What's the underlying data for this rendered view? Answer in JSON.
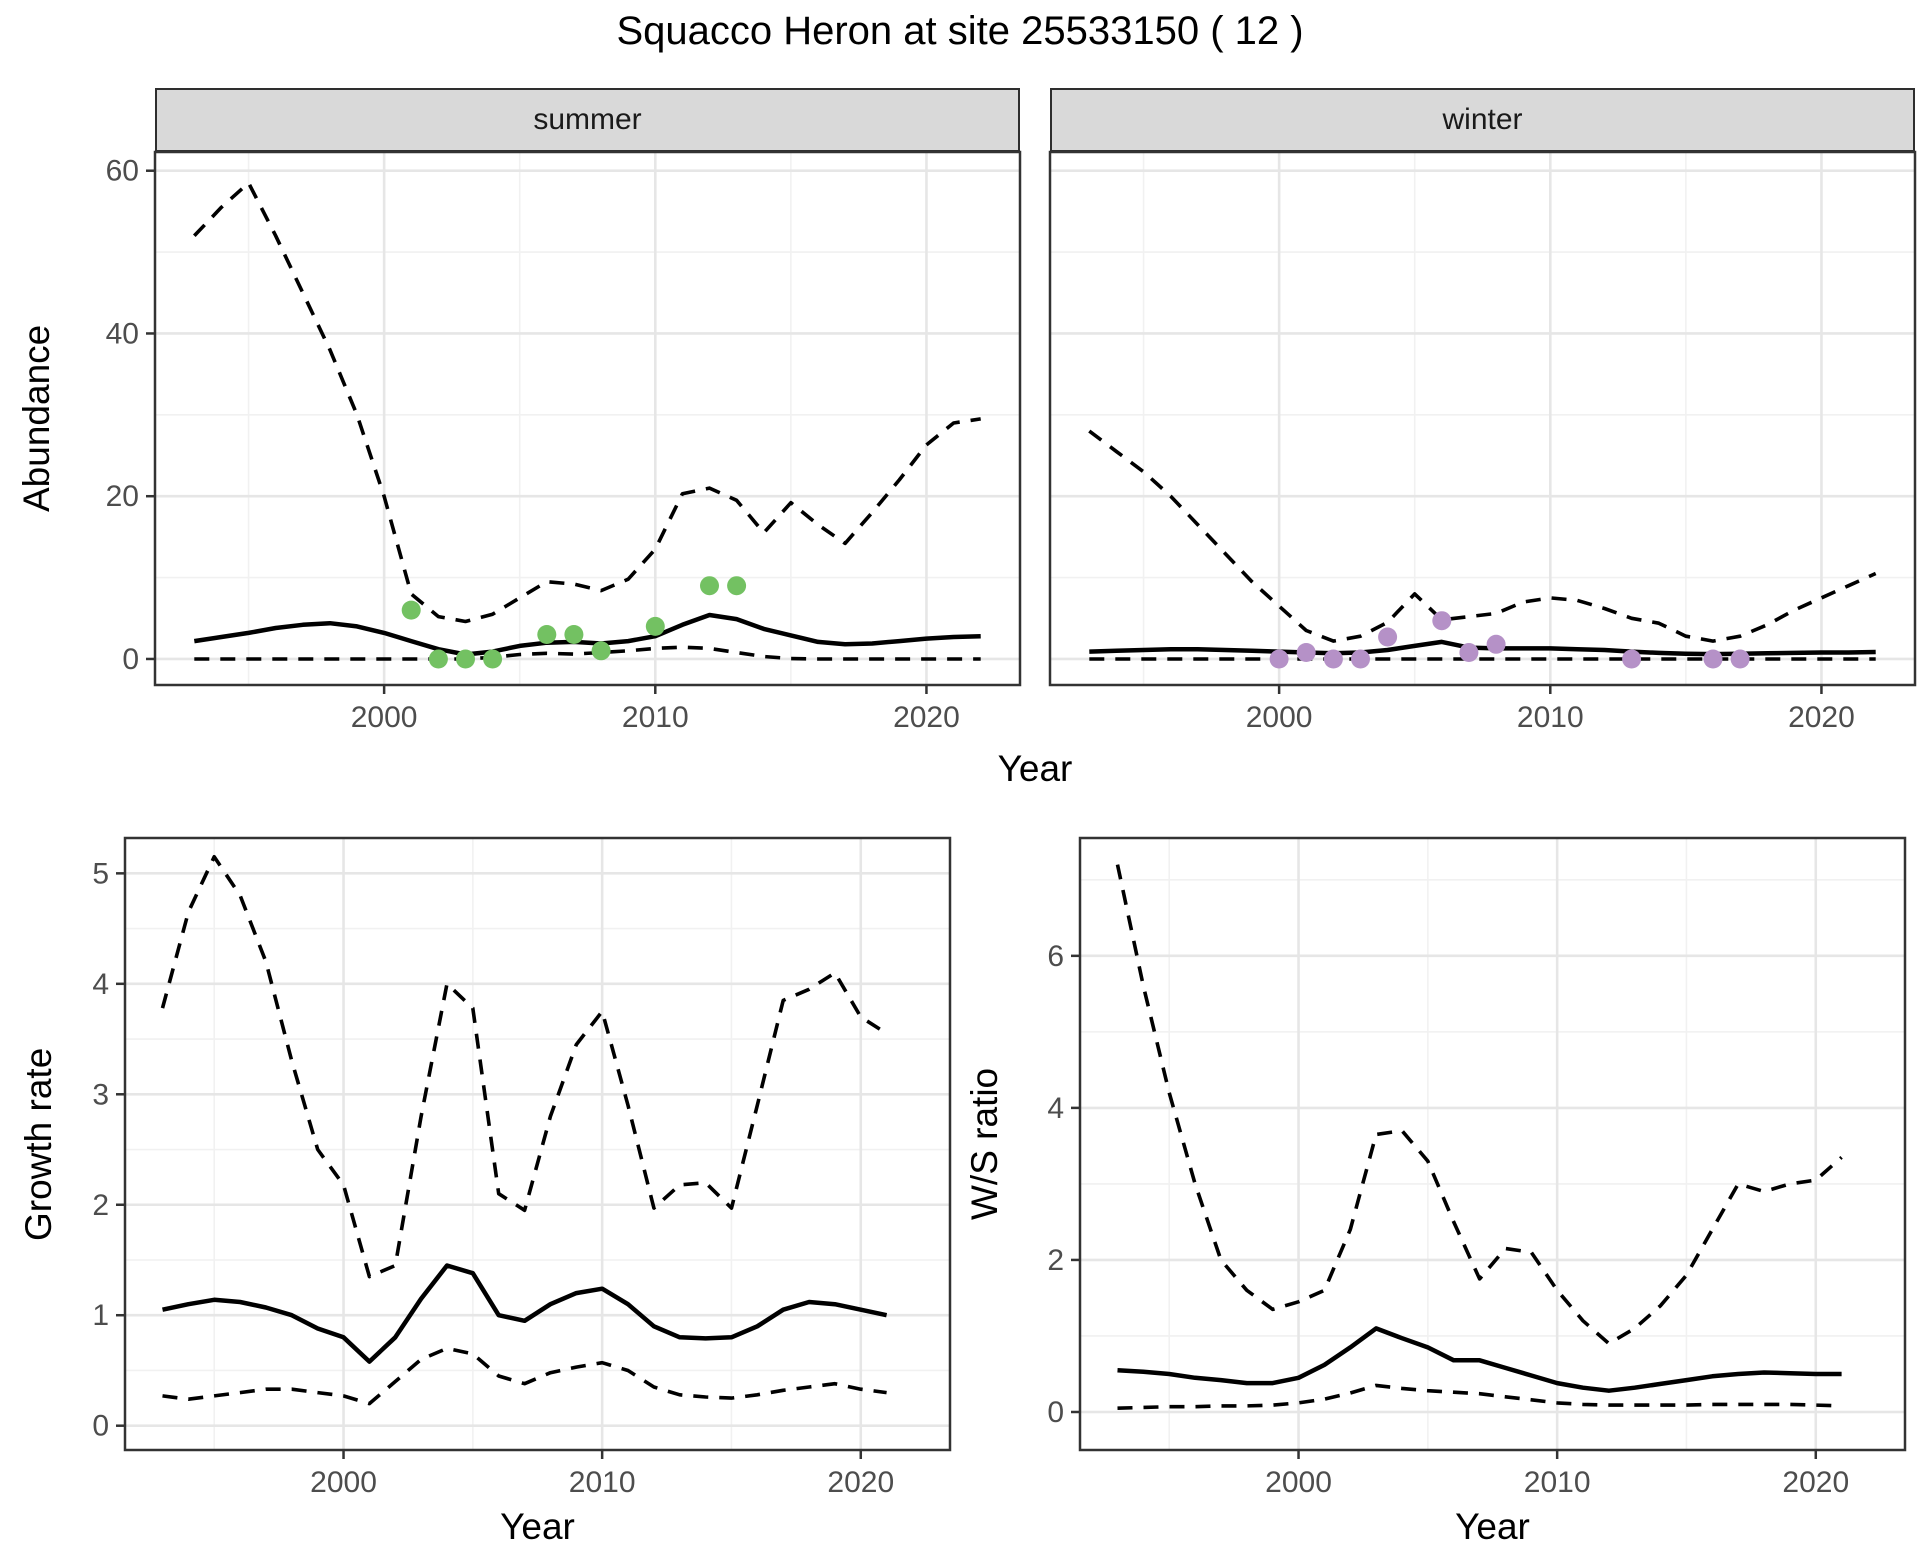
{
  "title": "Squacco Heron at site 25533150 ( 12 )",
  "top_row": {
    "ylabel": "Abundance",
    "xlabel": "Year"
  },
  "colors": {
    "summer_point": "#73c162",
    "winter_point": "#b591c7",
    "line": "#000000",
    "grid_major": "#e6e6e6",
    "grid_minor": "#f1f1f1",
    "axis_text": "#4d4d4d",
    "panel_border": "#333333",
    "strip_bg": "#d9d9d9"
  },
  "chart_data": [
    {
      "id": "abundance_summer",
      "type": "line",
      "facet_label": "summer",
      "ylabel": "Abundance",
      "xlabel": "Year",
      "xlim": [
        1991.55,
        2023.45
      ],
      "ylim": [
        -3.2,
        62.3
      ],
      "xticks": [
        2000,
        2010,
        2020
      ],
      "yticks": [
        0,
        20,
        40,
        60
      ],
      "xminor": [
        1995,
        2005,
        2015
      ],
      "yminor": [
        10,
        30,
        50
      ],
      "x": [
        1993,
        1994,
        1995,
        1996,
        1997,
        1998,
        1999,
        2000,
        2001,
        2002,
        2003,
        2004,
        2005,
        2006,
        2007,
        2008,
        2009,
        2010,
        2011,
        2012,
        2013,
        2014,
        2015,
        2016,
        2017,
        2018,
        2019,
        2020,
        2021,
        2022
      ],
      "series": [
        {
          "name": "upper_95ci",
          "style": "dashed",
          "values": [
            52,
            55.5,
            58.5,
            52,
            45,
            38,
            30,
            20,
            8,
            5.2,
            4.6,
            5.5,
            7.5,
            9.5,
            9.2,
            8.4,
            9.8,
            13.5,
            20.3,
            21,
            19.5,
            15.5,
            19.2,
            16.5,
            14.2,
            18,
            22,
            26.3,
            29,
            29.5
          ]
        },
        {
          "name": "median",
          "style": "solid",
          "values": [
            2.2,
            2.7,
            3.2,
            3.8,
            4.2,
            4.4,
            4.0,
            3.2,
            2.2,
            1.2,
            0.55,
            0.9,
            1.6,
            2.0,
            2.1,
            1.9,
            2.2,
            2.8,
            4.2,
            5.4,
            4.9,
            3.7,
            2.9,
            2.1,
            1.8,
            1.9,
            2.2,
            2.5,
            2.7,
            2.8
          ]
        },
        {
          "name": "lower_95ci",
          "style": "dashed",
          "values": [
            0,
            0,
            0,
            0,
            0,
            0,
            0,
            0,
            0,
            0,
            0,
            0.2,
            0.55,
            0.7,
            0.6,
            0.8,
            1.0,
            1.3,
            1.45,
            1.3,
            0.8,
            0.3,
            0.05,
            0,
            0,
            0,
            0,
            0,
            0,
            0
          ]
        }
      ],
      "points": {
        "name": "observed_counts_summer",
        "color_key": "summer_point",
        "x": [
          2001,
          2002,
          2003,
          2004,
          2006,
          2007,
          2008,
          2010,
          2012,
          2013
        ],
        "y": [
          6,
          0,
          0,
          0,
          3,
          3,
          1,
          4,
          9,
          9
        ]
      }
    },
    {
      "id": "abundance_winter",
      "type": "line",
      "facet_label": "winter",
      "ylabel": "Abundance",
      "xlabel": "Year",
      "xlim": [
        1991.55,
        2023.45
      ],
      "ylim": [
        -3.2,
        62.3
      ],
      "xticks": [
        2000,
        2010,
        2020
      ],
      "yticks": [
        0,
        20,
        40,
        60
      ],
      "xminor": [
        1995,
        2005,
        2015
      ],
      "yminor": [
        10,
        30,
        50
      ],
      "x": [
        1993,
        1994,
        1995,
        1996,
        1997,
        1998,
        1999,
        2000,
        2001,
        2002,
        2003,
        2004,
        2005,
        2006,
        2007,
        2008,
        2009,
        2010,
        2011,
        2012,
        2013,
        2014,
        2015,
        2016,
        2017,
        2018,
        2019,
        2020,
        2021,
        2022
      ],
      "series": [
        {
          "name": "upper_95ci",
          "style": "dashed",
          "values": [
            28,
            25.5,
            23,
            20,
            16.5,
            13,
            9.5,
            6.5,
            3.5,
            2.2,
            2.8,
            4.5,
            8,
            4.8,
            5.2,
            5.6,
            7,
            7.5,
            7.2,
            6.2,
            5,
            4.4,
            2.8,
            2.2,
            2.8,
            4.2,
            6,
            7.5,
            9,
            10.5
          ]
        },
        {
          "name": "median",
          "style": "solid",
          "values": [
            0.9,
            1.0,
            1.1,
            1.2,
            1.2,
            1.1,
            1.0,
            0.9,
            0.8,
            0.7,
            0.8,
            1.1,
            1.6,
            2.1,
            1.4,
            1.3,
            1.3,
            1.3,
            1.2,
            1.1,
            0.9,
            0.75,
            0.65,
            0.6,
            0.65,
            0.7,
            0.75,
            0.8,
            0.8,
            0.85
          ]
        },
        {
          "name": "lower_95ci",
          "style": "dashed",
          "values": [
            0,
            0,
            0,
            0,
            0,
            0,
            0,
            0,
            0,
            0,
            0,
            0,
            0,
            0,
            0,
            0,
            0,
            0,
            0,
            0,
            0,
            0,
            0,
            0,
            0,
            0,
            0,
            0,
            0,
            0
          ]
        }
      ],
      "points": {
        "name": "observed_counts_winter",
        "color_key": "winter_point",
        "x": [
          2000,
          2001,
          2002,
          2003,
          2004,
          2006,
          2007,
          2008,
          2013,
          2016,
          2017
        ],
        "y": [
          0,
          0.8,
          0,
          0,
          2.7,
          4.7,
          0.8,
          1.8,
          0,
          0,
          0
        ]
      }
    },
    {
      "id": "growth_rate",
      "type": "line",
      "ylabel": "Growth rate",
      "xlabel": "Year",
      "xlim": [
        1991.55,
        2023.45
      ],
      "ylim": [
        -0.22,
        5.32
      ],
      "xticks": [
        2000,
        2010,
        2020
      ],
      "yticks": [
        0,
        1,
        2,
        3,
        4,
        5
      ],
      "xminor": [
        1995,
        2005,
        2015
      ],
      "yminor": [
        0.5,
        1.5,
        2.5,
        3.5,
        4.5
      ],
      "x": [
        1993,
        1994,
        1995,
        1996,
        1997,
        1998,
        1999,
        2000,
        2001,
        2002,
        2003,
        2004,
        2005,
        2006,
        2007,
        2008,
        2009,
        2010,
        2011,
        2012,
        2013,
        2014,
        2015,
        2016,
        2017,
        2018,
        2019,
        2020,
        2021
      ],
      "series": [
        {
          "name": "upper_95ci",
          "style": "dashed",
          "values": [
            3.78,
            4.65,
            5.15,
            4.8,
            4.2,
            3.3,
            2.5,
            2.18,
            1.35,
            1.45,
            2.8,
            4.0,
            3.78,
            2.1,
            1.95,
            2.8,
            3.45,
            3.75,
            2.9,
            1.97,
            2.18,
            2.2,
            1.97,
            2.9,
            3.85,
            3.95,
            4.1,
            3.7,
            3.55
          ]
        },
        {
          "name": "median",
          "style": "solid",
          "values": [
            1.05,
            1.1,
            1.14,
            1.12,
            1.07,
            1.0,
            0.88,
            0.8,
            0.58,
            0.8,
            1.15,
            1.45,
            1.38,
            1.0,
            0.95,
            1.1,
            1.2,
            1.24,
            1.1,
            0.9,
            0.8,
            0.79,
            0.8,
            0.9,
            1.05,
            1.12,
            1.1,
            1.05,
            1.0
          ]
        },
        {
          "name": "lower_95ci",
          "style": "dashed",
          "values": [
            0.27,
            0.24,
            0.27,
            0.3,
            0.33,
            0.33,
            0.3,
            0.27,
            0.2,
            0.4,
            0.6,
            0.7,
            0.65,
            0.45,
            0.38,
            0.48,
            0.53,
            0.57,
            0.5,
            0.35,
            0.28,
            0.26,
            0.25,
            0.28,
            0.32,
            0.35,
            0.38,
            0.33,
            0.3
          ]
        }
      ]
    },
    {
      "id": "ws_ratio",
      "type": "line",
      "ylabel": "W/S ratio",
      "xlabel": "Year",
      "xlim": [
        1991.55,
        2023.45
      ],
      "ylim": [
        -0.5,
        7.55
      ],
      "xticks": [
        2000,
        2010,
        2020
      ],
      "yticks": [
        0,
        2,
        4,
        6
      ],
      "xminor": [
        1995,
        2005,
        2015
      ],
      "yminor": [
        1,
        3,
        5,
        7
      ],
      "x": [
        1993,
        1994,
        1995,
        1996,
        1997,
        1998,
        1999,
        2000,
        2001,
        2002,
        2003,
        2004,
        2005,
        2006,
        2007,
        2008,
        2009,
        2010,
        2011,
        2012,
        2013,
        2014,
        2015,
        2016,
        2017,
        2018,
        2019,
        2020,
        2021
      ],
      "series": [
        {
          "name": "upper_95ci",
          "style": "dashed",
          "values": [
            7.2,
            5.6,
            4.2,
            3.0,
            2.0,
            1.6,
            1.35,
            1.45,
            1.6,
            2.4,
            3.65,
            3.7,
            3.3,
            2.5,
            1.75,
            2.15,
            2.1,
            1.6,
            1.2,
            0.9,
            1.1,
            1.4,
            1.8,
            2.4,
            3.0,
            2.9,
            3.0,
            3.05,
            3.35
          ]
        },
        {
          "name": "median",
          "style": "solid",
          "values": [
            0.55,
            0.53,
            0.5,
            0.45,
            0.42,
            0.38,
            0.38,
            0.45,
            0.62,
            0.85,
            1.1,
            0.97,
            0.85,
            0.68,
            0.68,
            0.58,
            0.48,
            0.38,
            0.32,
            0.28,
            0.32,
            0.37,
            0.42,
            0.47,
            0.5,
            0.52,
            0.51,
            0.5,
            0.5
          ]
        },
        {
          "name": "lower_95ci",
          "style": "dashed",
          "values": [
            0.05,
            0.06,
            0.07,
            0.07,
            0.08,
            0.08,
            0.09,
            0.12,
            0.17,
            0.25,
            0.35,
            0.31,
            0.28,
            0.26,
            0.24,
            0.2,
            0.16,
            0.12,
            0.1,
            0.09,
            0.09,
            0.09,
            0.09,
            0.1,
            0.1,
            0.1,
            0.1,
            0.09,
            0.08
          ]
        }
      ]
    }
  ]
}
